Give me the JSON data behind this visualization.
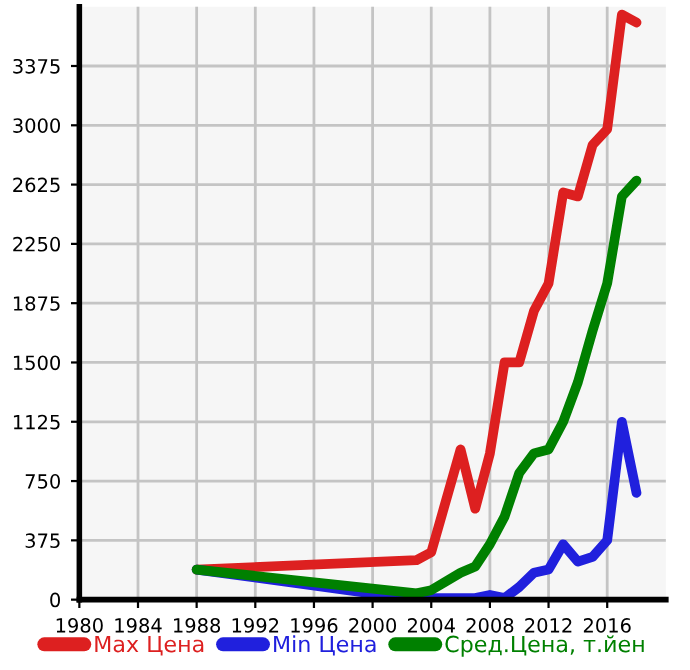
{
  "chart_data": {
    "type": "line",
    "x": [
      1988,
      2003,
      2004,
      2006,
      2007,
      2008,
      2009,
      2010,
      2011,
      2012,
      2013,
      2014,
      2015,
      2016,
      2017,
      2018
    ],
    "series": [
      {
        "name": "Max Цена",
        "color": "#dd2020",
        "values": [
          190,
          250,
          300,
          950,
          575,
          925,
          1500,
          1500,
          1825,
          2000,
          2575,
          2550,
          2875,
          2975,
          3700,
          3650
        ]
      },
      {
        "name": "Min Цена",
        "color": "#2020dd",
        "values": [
          190,
          0,
          10,
          10,
          10,
          30,
          10,
          80,
          170,
          190,
          350,
          240,
          270,
          375,
          1125,
          675
        ]
      },
      {
        "name": "Сред.Цена, т.йен",
        "color": "#008000",
        "values": [
          190,
          40,
          60,
          170,
          210,
          350,
          525,
          800,
          925,
          950,
          1125,
          1375,
          1700,
          2000,
          2550,
          2650
        ]
      }
    ],
    "xlim": [
      1980,
      2020
    ],
    "xticks": [
      1980,
      1984,
      1988,
      1992,
      1996,
      2000,
      2004,
      2008,
      2012,
      2016
    ],
    "ylim": [
      0,
      3750
    ],
    "yticks": [
      0,
      375,
      750,
      1125,
      1500,
      1875,
      2250,
      2625,
      3000,
      3375
    ],
    "grid": true,
    "legend": "bottom",
    "marker": "none",
    "line_style": "solid"
  }
}
